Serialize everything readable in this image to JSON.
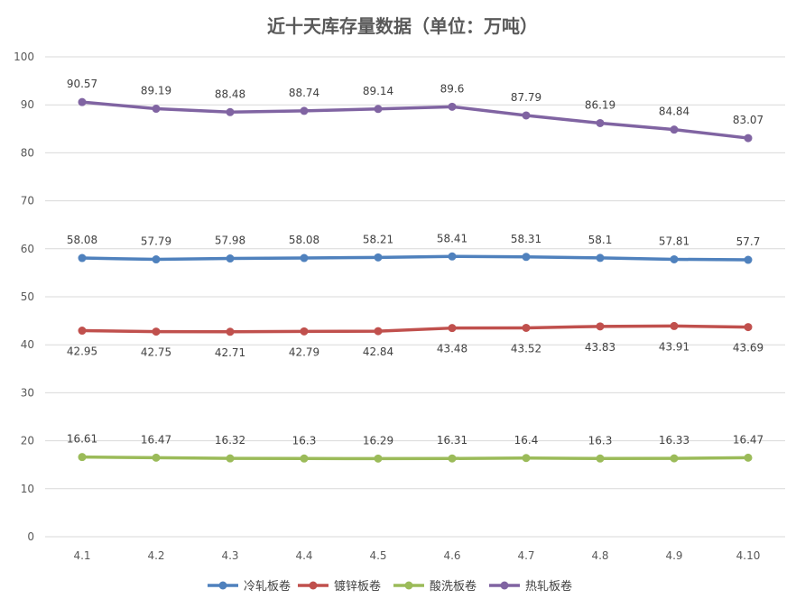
{
  "chart_data": {
    "type": "line",
    "title": "近十天库存量数据（单位：万吨）",
    "xlabel": "",
    "ylabel": "",
    "categories": [
      "4.1",
      "4.2",
      "4.3",
      "4.4",
      "4.5",
      "4.6",
      "4.7",
      "4.8",
      "4.9",
      "4.10"
    ],
    "ylim": [
      0,
      100
    ],
    "yticks": [
      0,
      10,
      20,
      30,
      40,
      50,
      60,
      70,
      80,
      90,
      100
    ],
    "grid": true,
    "legend_position": "bottom",
    "series": [
      {
        "name": "冷轧板卷",
        "color": "#4f81bd",
        "label_pos": "above",
        "values": [
          58.08,
          57.79,
          57.98,
          58.08,
          58.21,
          58.41,
          58.31,
          58.1,
          57.81,
          57.7
        ]
      },
      {
        "name": "镀锌板卷",
        "color": "#c0504d",
        "label_pos": "below",
        "values": [
          42.95,
          42.75,
          42.71,
          42.79,
          42.84,
          43.48,
          43.52,
          43.83,
          43.91,
          43.69
        ]
      },
      {
        "name": "酸洗板卷",
        "color": "#9bbb59",
        "label_pos": "above",
        "values": [
          16.61,
          16.47,
          16.32,
          16.3,
          16.29,
          16.31,
          16.4,
          16.3,
          16.33,
          16.47
        ]
      },
      {
        "name": "热轧板卷",
        "color": "#8064a2",
        "label_pos": "above",
        "values": [
          90.57,
          89.19,
          88.48,
          88.74,
          89.14,
          89.6,
          87.79,
          86.19,
          84.84,
          83.07
        ]
      }
    ]
  }
}
